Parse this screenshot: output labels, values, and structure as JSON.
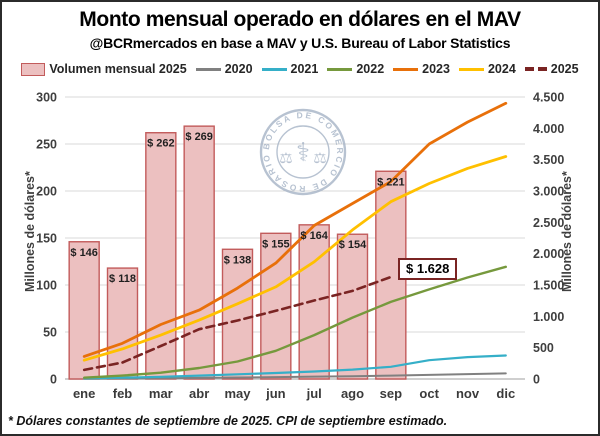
{
  "header": {
    "title": "Monto mensual operado en dólares en el MAV",
    "subtitle": "@BCRmercados en base a MAV y U.S. Bureau of Labor Statistics"
  },
  "footnote": "* Dólares constantes de septiembre de 2025. CPI de septiembre estimado.",
  "chart_data": {
    "type": "bar+line",
    "categories": [
      "ene",
      "feb",
      "mar",
      "abr",
      "may",
      "jun",
      "jul",
      "ago",
      "sep",
      "oct",
      "nov",
      "dic"
    ],
    "bar_series": {
      "name": "Volumen mensual 2025",
      "axis": "left",
      "values": [
        146,
        118,
        262,
        269,
        138,
        155,
        164,
        154,
        221,
        null,
        null,
        null
      ],
      "labels": [
        "$ 146",
        "$ 118",
        "$ 262",
        "$ 269",
        "$ 138",
        "$ 155",
        "$ 164",
        "$ 154",
        "$ 221"
      ],
      "fill": "#ECC0C0",
      "border": "#C25B5B"
    },
    "line_series": [
      {
        "name": "2020",
        "color": "#808080",
        "dash": false,
        "width": 2,
        "axis": "right",
        "values": [
          5,
          8,
          12,
          18,
          24,
          30,
          38,
          45,
          55,
          65,
          78,
          90
        ]
      },
      {
        "name": "2021",
        "color": "#35AFC8",
        "dash": false,
        "width": 2.2,
        "axis": "right",
        "values": [
          10,
          20,
          35,
          55,
          75,
          95,
          120,
          150,
          195,
          300,
          350,
          375
        ]
      },
      {
        "name": "2022",
        "color": "#76993D",
        "dash": false,
        "width": 2.4,
        "axis": "right",
        "values": [
          20,
          55,
          100,
          175,
          280,
          450,
          700,
          980,
          1230,
          1430,
          1620,
          1790
        ]
      },
      {
        "name": "2023",
        "color": "#E8700A",
        "dash": false,
        "width": 2.8,
        "axis": "right",
        "values": [
          360,
          570,
          870,
          1100,
          1450,
          1850,
          2450,
          2800,
          3150,
          3750,
          4100,
          4400
        ]
      },
      {
        "name": "2024",
        "color": "#FFC000",
        "dash": false,
        "width": 2.8,
        "axis": "right",
        "values": [
          300,
          480,
          700,
          940,
          1200,
          1470,
          1870,
          2380,
          2830,
          3120,
          3360,
          3550
        ]
      },
      {
        "name": "2025",
        "color": "#7A2423",
        "dash": true,
        "width": 2.6,
        "axis": "right",
        "values": [
          146,
          264,
          526,
          795,
          933,
          1088,
          1252,
          1406,
          1628,
          null,
          null,
          null
        ]
      }
    ],
    "left_axis": {
      "label": "Millones de dólares*",
      "min": 0,
      "max": 300,
      "step": 50,
      "ticks": [
        "0",
        "50",
        "100",
        "150",
        "200",
        "250",
        "300"
      ]
    },
    "right_axis": {
      "label": "Millones de dólares*",
      "min": 0,
      "max": 4500,
      "step": 500,
      "ticks": [
        "0",
        "500",
        "1.000",
        "1.500",
        "2.000",
        "2.500",
        "3.000",
        "3.500",
        "4.000",
        "4.500"
      ]
    },
    "annotation": {
      "text": "$ 1.628",
      "border_color": "#7a2423",
      "attached_series": "2025",
      "attached_category": "sep"
    },
    "watermark": {
      "ring_text": "BOLSA DE COMERCIO DE ROSARIO",
      "color": "#A6B4C6",
      "scales_icon": "⚖",
      "caduceus_icon": "⚕"
    },
    "grid": {
      "on": true,
      "color": "#D9D9D9",
      "axis_line_color": "#BFBFBF"
    }
  }
}
